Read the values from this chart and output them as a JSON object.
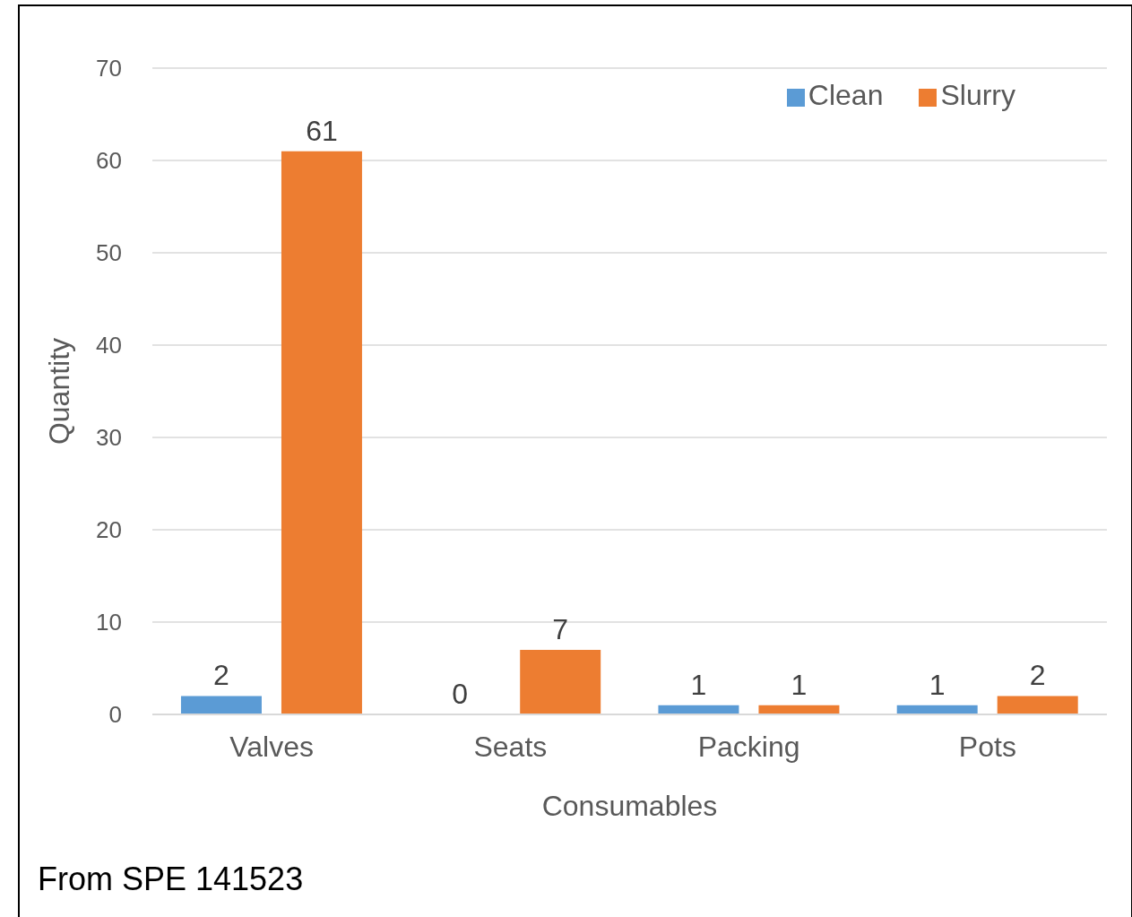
{
  "chart_data": {
    "type": "bar",
    "xlabel": "Consumables",
    "ylabel": "Quantity",
    "categories": [
      "Valves",
      "Seats",
      "Packing",
      "Pots"
    ],
    "series": [
      {
        "name": "Clean",
        "color": "#5b9bd5",
        "values": [
          2,
          0,
          1,
          1
        ]
      },
      {
        "name": "Slurry",
        "color": "#ed7d31",
        "values": [
          61,
          7,
          1,
          2
        ]
      }
    ],
    "ylim": [
      0,
      70
    ],
    "yticks": [
      0,
      10,
      20,
      30,
      40,
      50,
      60,
      70
    ],
    "grid": "y",
    "legend": "top right",
    "data_labels": true,
    "annotations": [
      "From SPE 141523"
    ]
  }
}
